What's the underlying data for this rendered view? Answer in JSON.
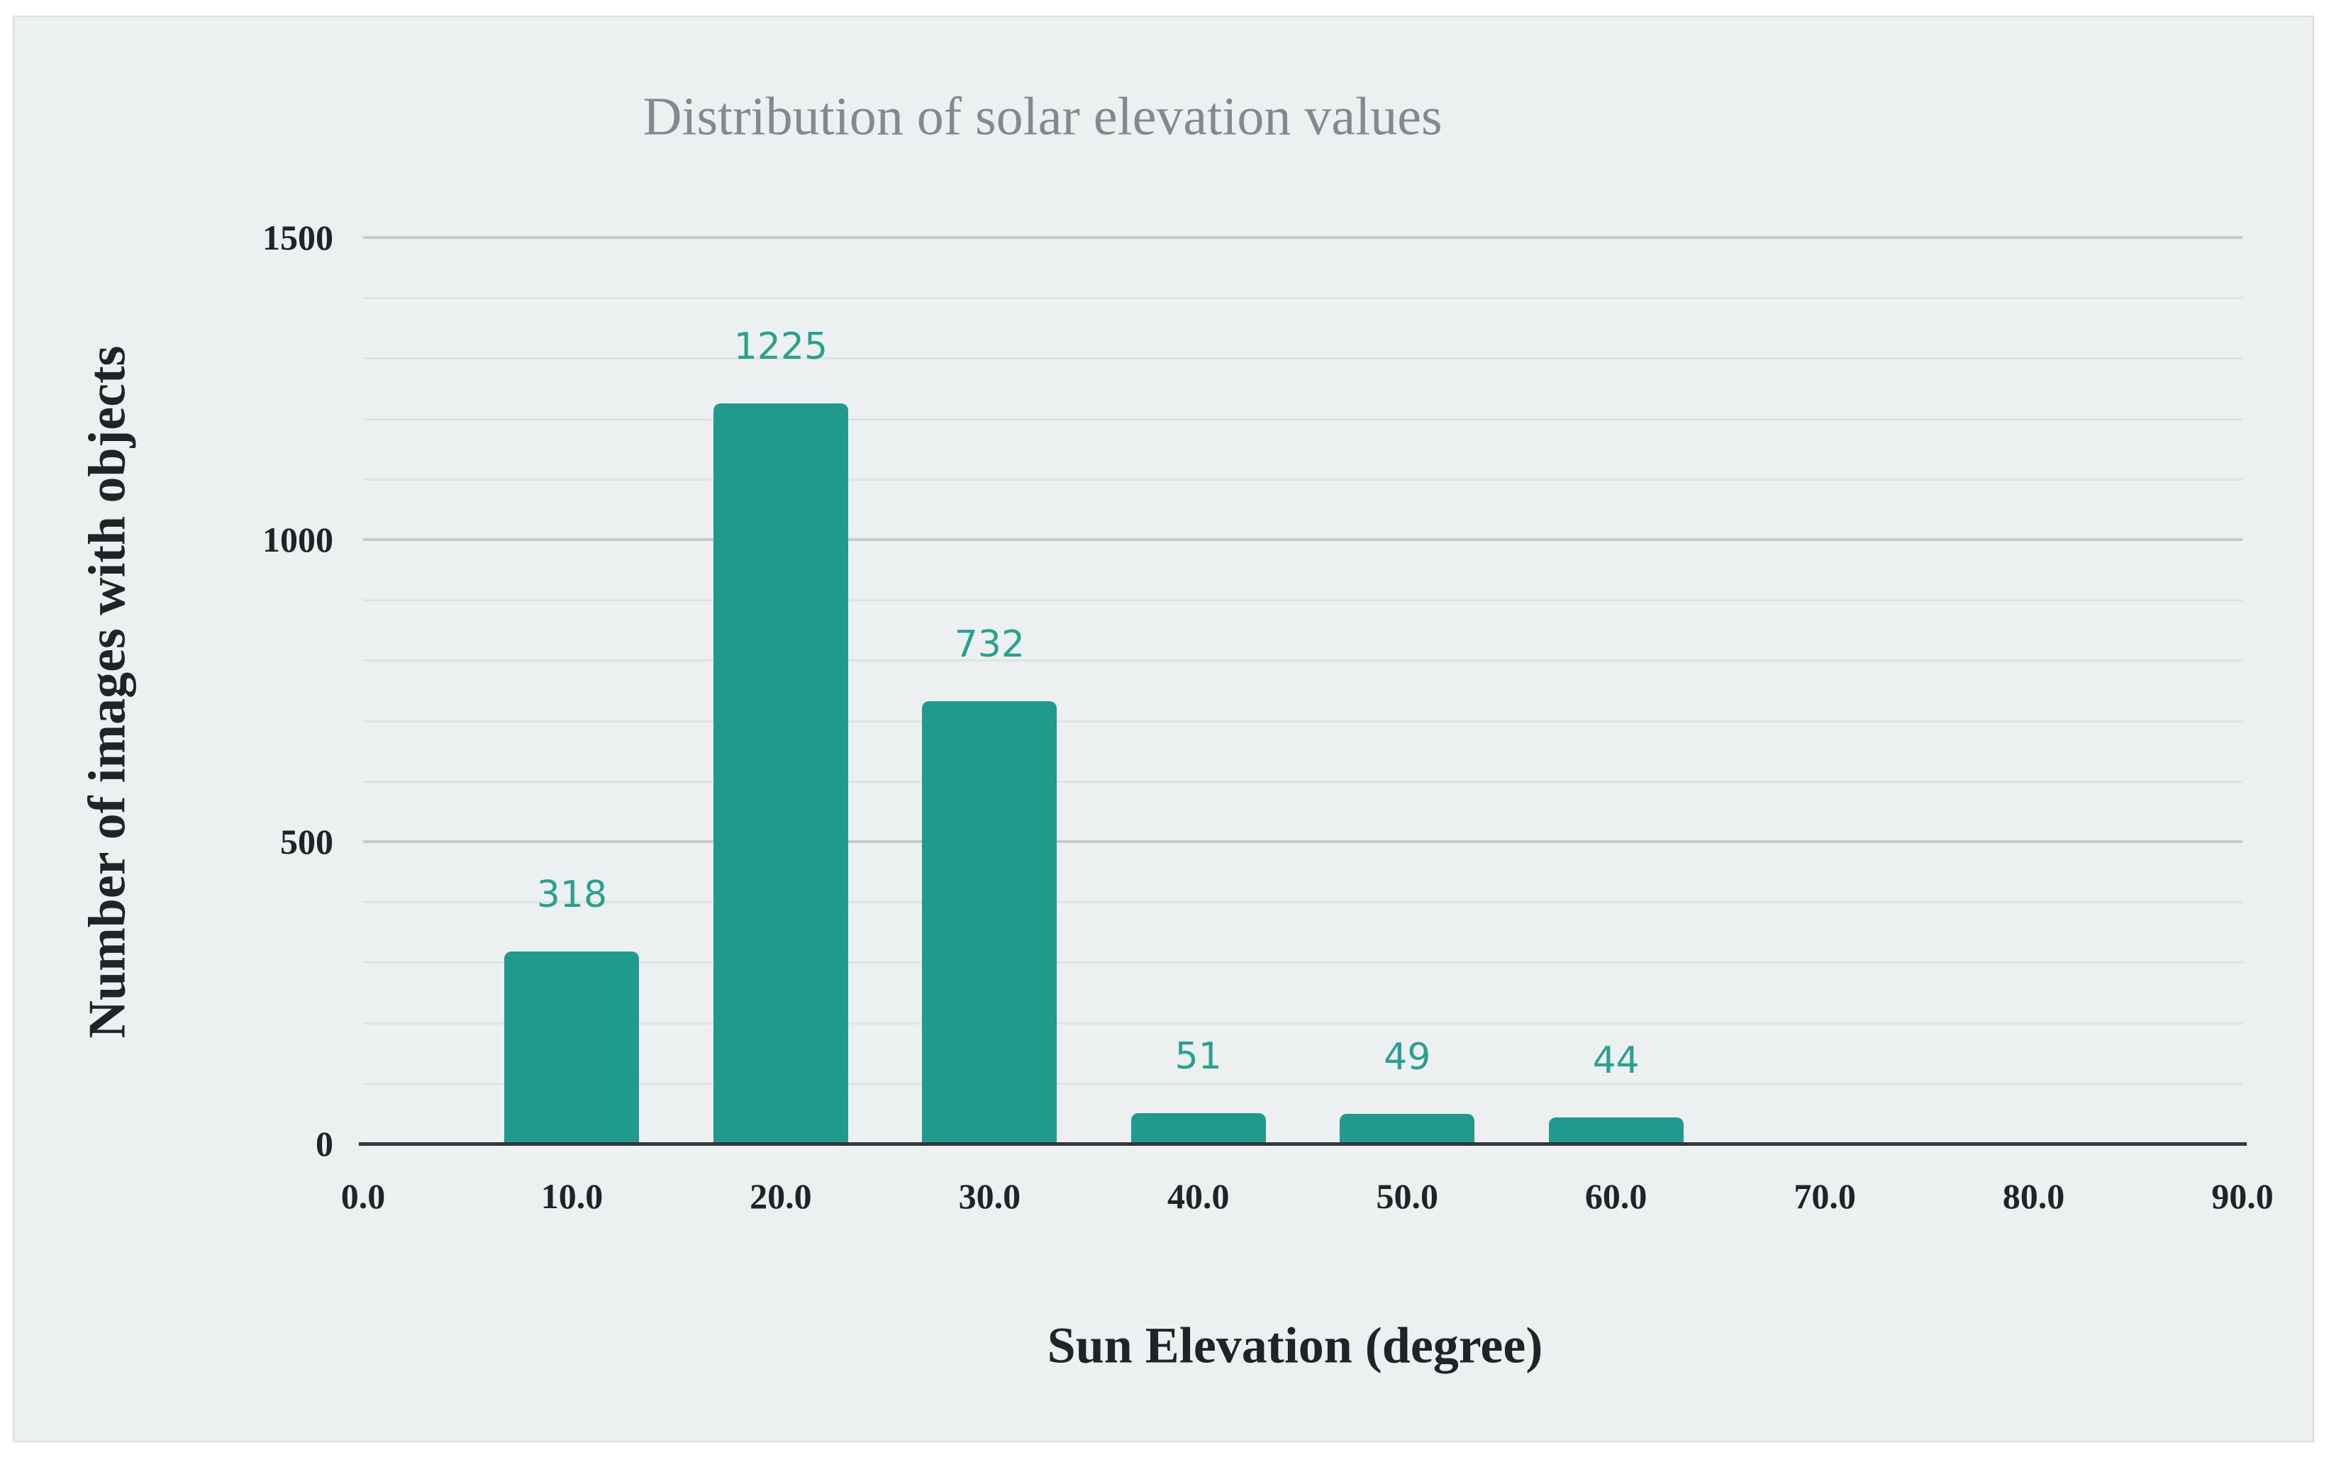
{
  "figure": {
    "title": "Distribution of solar elevation values"
  },
  "chart_data": {
    "type": "bar",
    "title": "Distribution of solar elevation values",
    "xlabel": "Sun Elevation (degree)",
    "ylabel": "Number of images with objects",
    "x": [
      10,
      20,
      30,
      40,
      50,
      60
    ],
    "values": [
      318,
      1225,
      732,
      51,
      49,
      44
    ],
    "bar_labels": [
      "318",
      "1225",
      "732",
      "51",
      "49",
      "44"
    ],
    "x_tick_labels": [
      "0.0",
      "10.0",
      "20.0",
      "30.0",
      "40.0",
      "50.0",
      "60.0",
      "70.0",
      "80.0",
      "90.0"
    ],
    "x_tick_values": [
      0,
      10,
      20,
      30,
      40,
      50,
      60,
      70,
      80,
      90
    ],
    "y_tick_labels": [
      "0",
      "500",
      "1000",
      "1500"
    ],
    "y_tick_values": [
      0,
      500,
      1000,
      1500
    ],
    "xlim": [
      0,
      90
    ],
    "ylim": [
      0,
      1500
    ],
    "y_grid_minor_step": 100,
    "grid": "horizontal only; minor lines every 100, major lines every 500",
    "legend": "none",
    "colors": {
      "bar": "#209a8d",
      "bar_value_label": "#2aa08f",
      "title": "#85898d",
      "axis_text": "#202427",
      "panel_background": "#edf0f1",
      "page_background": "#ffffff",
      "minor_grid": "#e0e3e4",
      "major_grid": "#c7cbcc",
      "axis_line": "#33373a"
    }
  }
}
